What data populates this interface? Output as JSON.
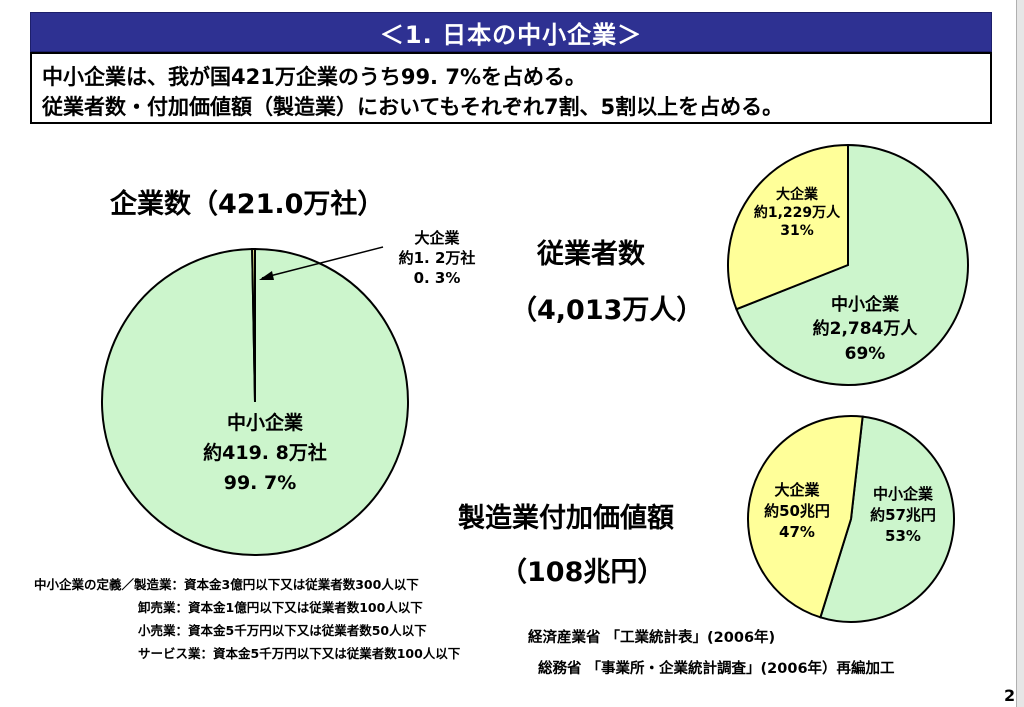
{
  "title": "＜1. 日本の中小企業＞",
  "summary": {
    "line1": "中小企業は、我が国421万企業のうち99. 7%を占める。",
    "line2": "従業者数・付加価値額（製造業）においてもそれぞれ7割、5割以上を占める。"
  },
  "colors": {
    "sme": "#ccf5cc",
    "large": "#ffff99",
    "title_bg": "#2e3192"
  },
  "charts": {
    "companies": {
      "heading": "企業数（421.0万社）"
    },
    "employees": {
      "heading_line1": "従業者数",
      "heading_line2": "（4,013万人）"
    },
    "value_added": {
      "heading_line1": "製造業付加価値額",
      "heading_line2": "（108兆円）"
    }
  },
  "chart_data": [
    {
      "type": "pie",
      "title": "企業数（421.0万社）",
      "slices": [
        {
          "label": "中小企業",
          "amount": "約419. 8万社",
          "percent_text": "99. 7%",
          "value": 99.7
        },
        {
          "label": "大企業",
          "amount": "約1. 2万社",
          "percent_text": "0. 3%",
          "value": 0.3
        }
      ]
    },
    {
      "type": "pie",
      "title": "従業者数（4,013万人）",
      "slices": [
        {
          "label": "中小企業",
          "amount": "約2,784万人",
          "percent_text": "69%",
          "value": 69
        },
        {
          "label": "大企業",
          "amount": "約1,229万人",
          "percent_text": "31%",
          "value": 31
        }
      ]
    },
    {
      "type": "pie",
      "title": "製造業付加価値額（108兆円）",
      "slices": [
        {
          "label": "中小企業",
          "amount": "約57兆円",
          "percent_text": "53%",
          "value": 53
        },
        {
          "label": "大企業",
          "amount": "約50兆円",
          "percent_text": "47%",
          "value": 47
        }
      ]
    }
  ],
  "notes": [
    "中小企業の定義／製造業：資本金3億円以下又は従業者数300人以下",
    "卸売業：資本金1億円以下又は従業者数100人以下",
    "小売業：資本金5千万円以下又は従業者数50人以下",
    "サービス業：資本金5千万円以下又は従業者数100人以下"
  ],
  "sources": {
    "line1": "経済産業省 「工業統計表」(2006年)",
    "line2": "総務省 「事業所・企業統計調査」(2006年）再編加工"
  },
  "page_number": "2"
}
